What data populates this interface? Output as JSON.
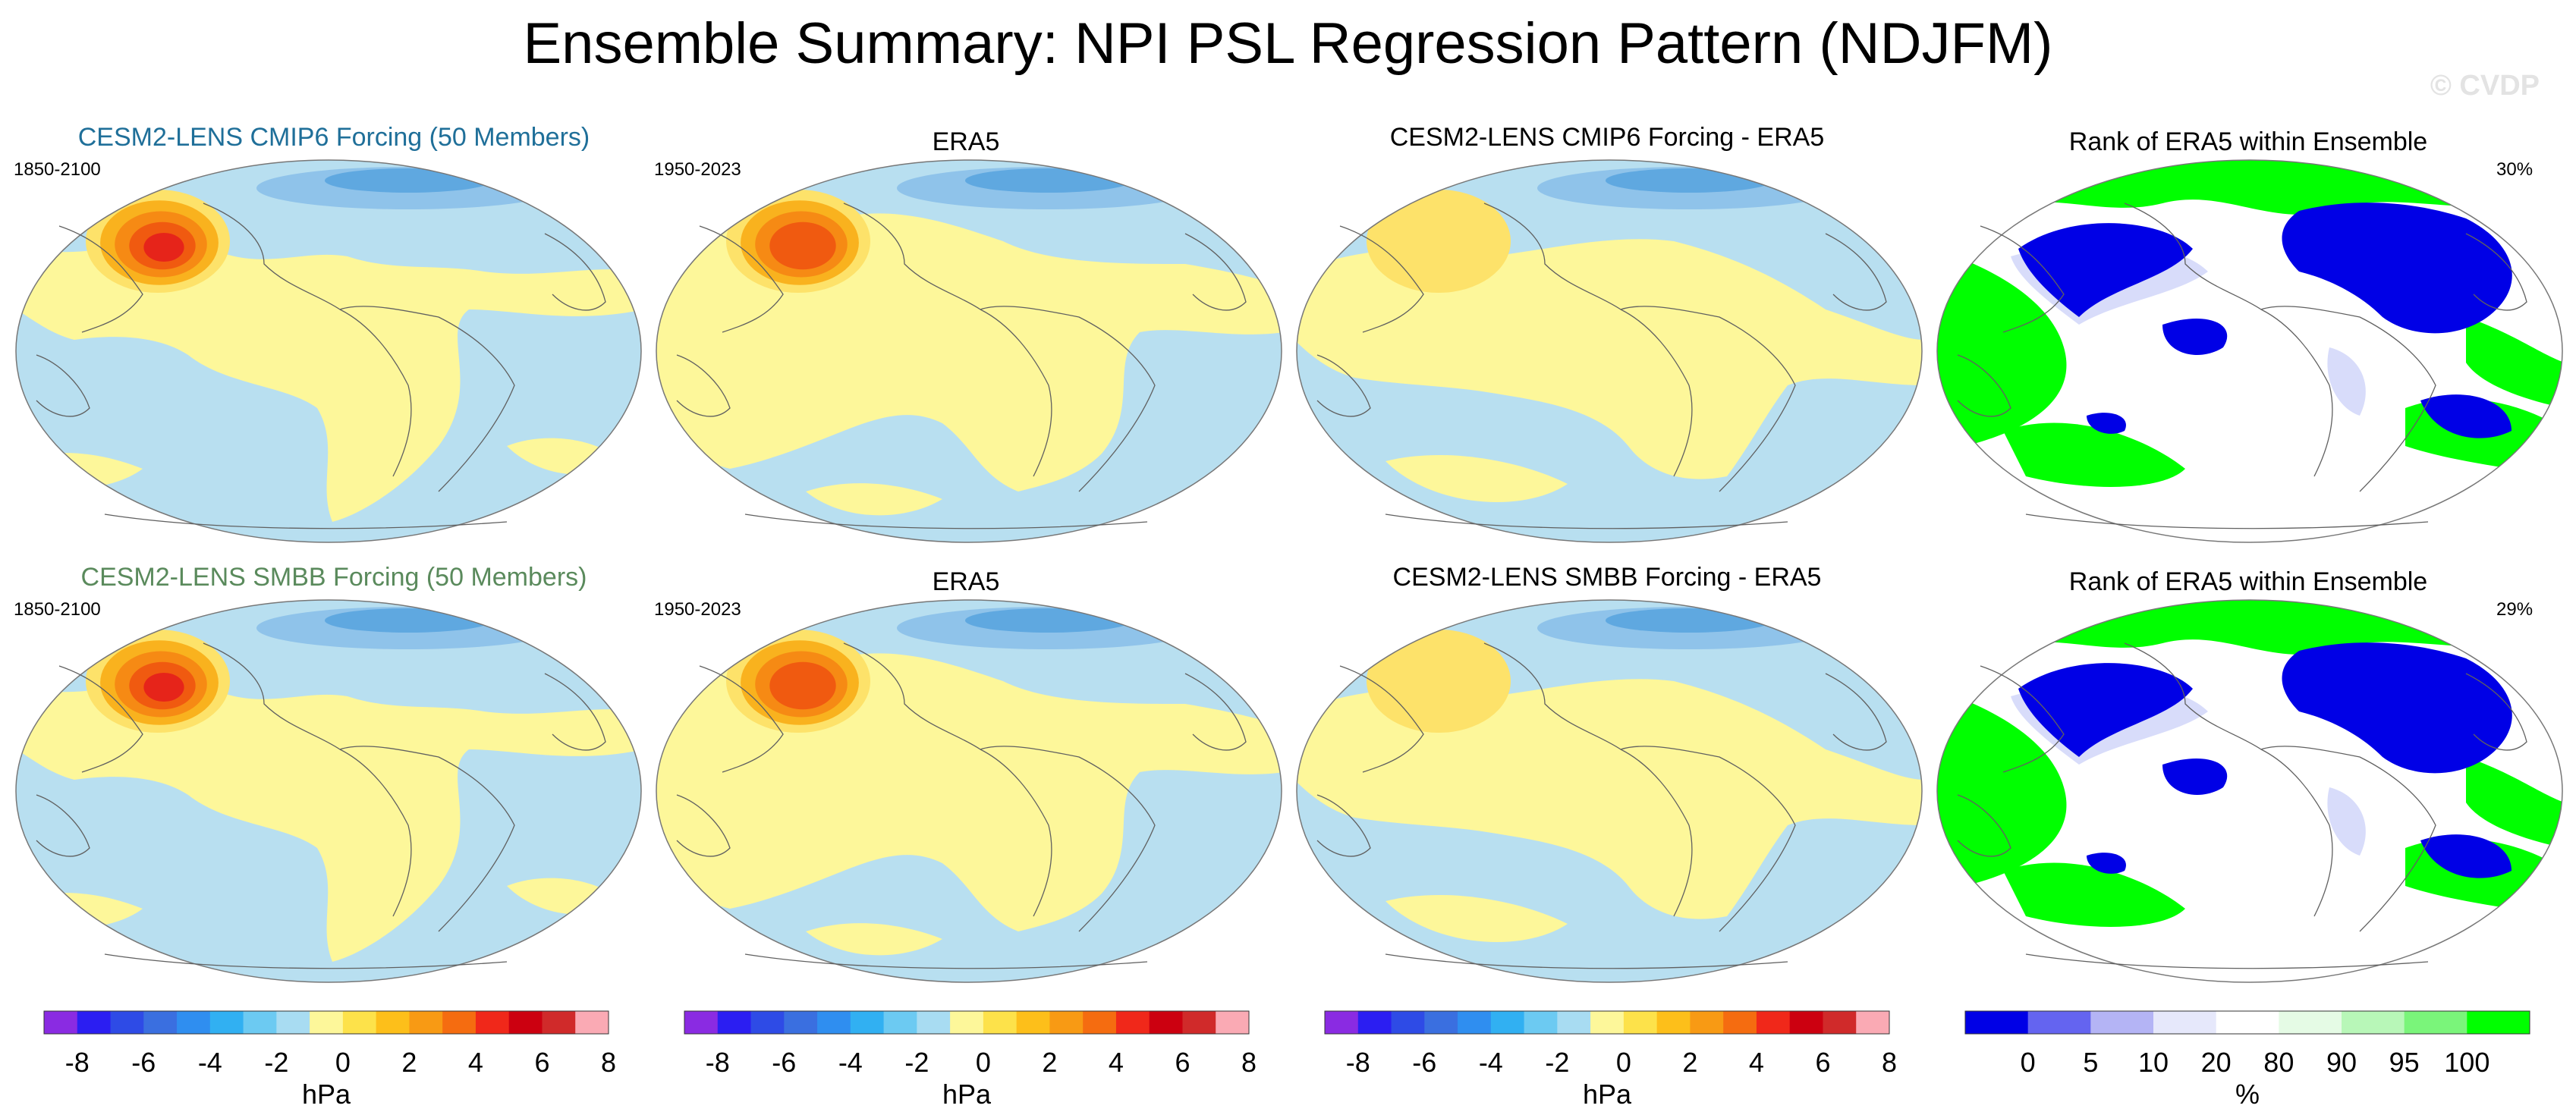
{
  "main_title": "Ensemble Summary: NPI PSL Regression Pattern (NDJFM)",
  "watermark": "© CVDP",
  "colors": {
    "ocean_neutral": "#b8dff0",
    "pos_neutral": "#fdf79a",
    "contour_pos": [
      "#fde26a",
      "#f9b21e",
      "#f68a14",
      "#f05a10",
      "#e6241a"
    ],
    "contour_neg": [
      "#8fc3ea",
      "#5fa8e0"
    ],
    "rank_green": "#00ff00",
    "rank_blue": "#0000e6",
    "rank_light_blue": "#d8dcfa",
    "coast": "#606060"
  },
  "rows": [
    {
      "model_title": "CESM2-LENS CMIP6 Forcing (50 Members)",
      "model_title_color": "#1f6f99",
      "model_period": "1850-2100",
      "obs_title": "ERA5",
      "obs_period": "1950-2023",
      "diff_title": "CESM2-LENS CMIP6 Forcing - ERA5",
      "rank_title": "Rank of ERA5 within Ensemble",
      "rank_percent": "30%"
    },
    {
      "model_title": "CESM2-LENS SMBB Forcing (50 Members)",
      "model_title_color": "#5a8a5c",
      "model_period": "1850-2100",
      "obs_title": "ERA5",
      "obs_period": "1950-2023",
      "diff_title": "CESM2-LENS SMBB Forcing - ERA5",
      "rank_title": "Rank of ERA5 within Ensemble",
      "rank_percent": "29%"
    }
  ],
  "chart_data": [
    {
      "type": "colorbar",
      "name": "psl_regression",
      "units": "hPa",
      "tick_labels": [
        "-8",
        "-6",
        "-4",
        "-2",
        "0",
        "2",
        "4",
        "6",
        "8"
      ],
      "tick_values": [
        -8,
        -6,
        -4,
        -2,
        0,
        2,
        4,
        6,
        8
      ],
      "colors": [
        "#8a2be2",
        "#2b1ef2",
        "#2e4be6",
        "#3a6fe0",
        "#2f8ef0",
        "#31b0f2",
        "#6ccaf2",
        "#a8dcf2",
        "#fdf79a",
        "#fde24a",
        "#fdbf1a",
        "#f89a14",
        "#f56c10",
        "#f0281a",
        "#cc0010",
        "#d02a2a",
        "#faaab4"
      ]
    },
    {
      "type": "colorbar",
      "name": "rank",
      "units": "%",
      "tick_labels": [
        "0",
        "5",
        "10",
        "20",
        "80",
        "90",
        "95",
        "100"
      ],
      "tick_values": [
        0,
        5,
        10,
        20,
        80,
        90,
        95,
        100
      ],
      "colors": [
        "#0000e6",
        "#6464f0",
        "#b4b4f5",
        "#e6e8fb",
        "#ffffff",
        "#e5fbe5",
        "#b8f7b8",
        "#7af57a",
        "#00ff00"
      ]
    }
  ]
}
